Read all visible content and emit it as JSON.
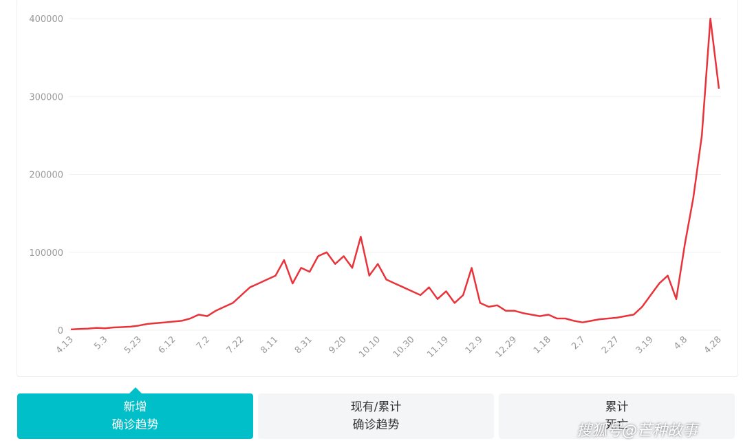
{
  "chart_data": {
    "type": "line",
    "color": "#e8333a",
    "categories": [
      "4.13",
      null,
      null,
      null,
      "5.3",
      null,
      null,
      null,
      "5.23",
      null,
      null,
      null,
      "6.12",
      null,
      null,
      null,
      "7.2",
      null,
      null,
      null,
      "7.22",
      null,
      null,
      null,
      "8.11",
      null,
      null,
      null,
      "8.31",
      null,
      null,
      null,
      "9.20",
      null,
      null,
      null,
      "10.10",
      null,
      null,
      null,
      "10.30",
      null,
      null,
      null,
      "11.19",
      null,
      null,
      null,
      "12.9",
      null,
      null,
      null,
      "12.29",
      null,
      null,
      null,
      "1.18",
      null,
      null,
      null,
      "2.7",
      null,
      null,
      null,
      "2.27",
      null,
      null,
      null,
      "3.19",
      null,
      null,
      null,
      "4.8",
      null,
      null,
      null,
      "4.28"
    ],
    "values": [
      1000,
      1500,
      2000,
      3000,
      2500,
      3500,
      4000,
      4500,
      6000,
      8000,
      9000,
      10000,
      11000,
      12000,
      15000,
      20000,
      18000,
      25000,
      30000,
      35000,
      45000,
      55000,
      60000,
      65000,
      70000,
      90000,
      60000,
      80000,
      75000,
      95000,
      100000,
      85000,
      95000,
      80000,
      120000,
      70000,
      85000,
      65000,
      60000,
      55000,
      50000,
      45000,
      55000,
      40000,
      50000,
      35000,
      45000,
      80000,
      35000,
      30000,
      32000,
      25000,
      25000,
      22000,
      20000,
      18000,
      20000,
      15000,
      15000,
      12000,
      10000,
      12000,
      14000,
      15000,
      16000,
      18000,
      20000,
      30000,
      45000,
      60000,
      70000,
      40000,
      110000,
      170000,
      250000,
      400000,
      310000
    ],
    "ylim": [
      0,
      400000
    ],
    "yticks": [
      0,
      100000,
      200000,
      300000,
      400000
    ],
    "grid": true
  },
  "tabs": [
    {
      "line1": "新增",
      "line2": "确诊趋势"
    },
    {
      "line1": "现有/累计",
      "line2": "确诊趋势"
    },
    {
      "line1": "累计",
      "line2": "死亡"
    }
  ],
  "watermark": "搜狐号@芒种故事"
}
